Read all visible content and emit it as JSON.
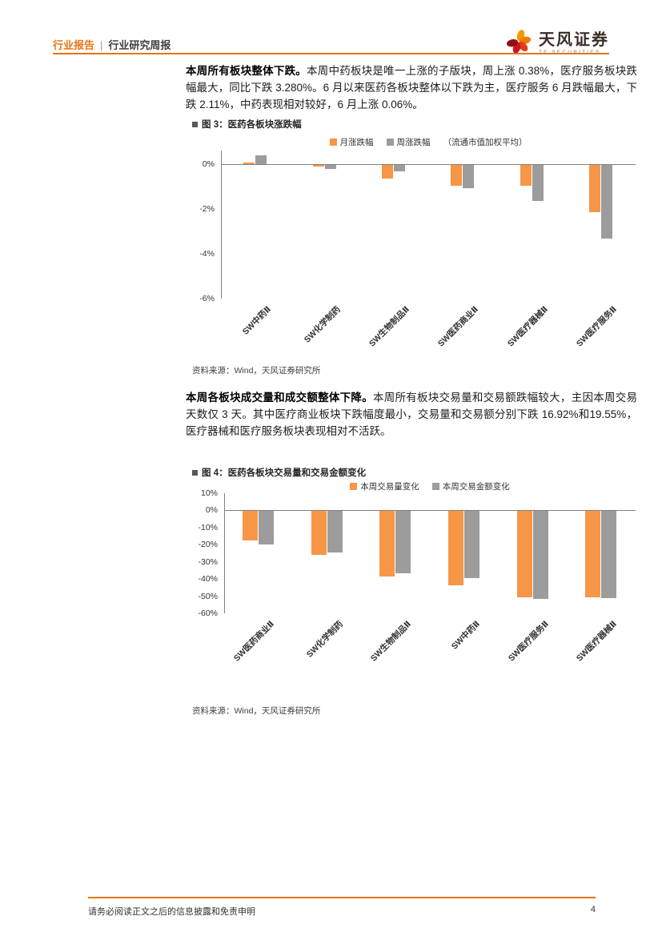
{
  "header": {
    "category": "行业报告",
    "separator": "|",
    "title": "行业研究周报",
    "brand": "天风证券",
    "brand_sub": "TF SECURITIES"
  },
  "paragraphs": {
    "p1_bold": "本周所有板块整体下跌。",
    "p1_text": "本周中药板块是唯一上涨的子版块，周上涨 0.38%，医疗服务板块跌幅最大，同比下跌 3.280%。6 月以来医药各板块整体以下跌为主，医疗服务 6 月跌幅最大，下跌 2.11%，中药表现相对较好，6 月上涨 0.06%。",
    "p2_bold": "本周各板块成交量和成交额整体下降。",
    "p2_text": "本周所有板块交易量和交易额跌幅较大，主因本周交易天数仅 3 天。其中医疗商业板块下跌幅度最小，交易量和交易额分别下跌 16.92%和19.55%，医疗器械和医疗服务板块表现相对不活跃。"
  },
  "figures": [
    {
      "caption": "图 3：医药各板块涨跌幅",
      "source": "资料来源：Wind，天风证券研究所"
    },
    {
      "caption": "图 4：医药各板块交易量和交易金额变化",
      "source": "资料来源：Wind，天风证券研究所"
    }
  ],
  "chart_data": [
    {
      "type": "bar",
      "title": "医药各板块涨跌幅",
      "categories": [
        "SW中药Ⅱ",
        "SW化学制药",
        "SW生物制品Ⅱ",
        "SW医药商业Ⅱ",
        "SW医疗器械Ⅱ",
        "SW医疗服务Ⅱ"
      ],
      "series": [
        {
          "name": "月涨跌幅",
          "color": "#F79646",
          "values": [
            0.06,
            -0.08,
            -0.6,
            -0.95,
            -0.95,
            -2.11
          ]
        },
        {
          "name": "周涨跌幅",
          "color": "#9C9C9C",
          "values": [
            0.38,
            -0.18,
            -0.3,
            -1.05,
            -1.6,
            -3.28
          ]
        }
      ],
      "legend_note": "（流通市值加权平均）",
      "ylim": [
        -6,
        0.6
      ],
      "yticks": [
        0,
        -2,
        -4,
        -6
      ],
      "ytick_labels": [
        "0%",
        "-2%",
        "-4%",
        "-6%"
      ],
      "legend_position": "top",
      "grid": false
    },
    {
      "type": "bar",
      "title": "医药各板块交易量和交易金额变化",
      "categories": [
        "SW医药商业Ⅱ",
        "SW化学制药",
        "SW生物制品Ⅱ",
        "SW中药Ⅱ",
        "SW医疗服务Ⅱ",
        "SW医疗器械Ⅱ"
      ],
      "series": [
        {
          "name": "本周交易量变化",
          "color": "#F79646",
          "values": [
            -16.92,
            -25.5,
            -38,
            -43,
            -50,
            -50
          ]
        },
        {
          "name": "本周交易金额变化",
          "color": "#9C9C9C",
          "values": [
            -19.55,
            -24,
            -36,
            -39,
            -51,
            -50.5
          ]
        }
      ],
      "legend_note": "",
      "ylim": [
        -60,
        10
      ],
      "yticks": [
        10,
        0,
        -10,
        -20,
        -30,
        -40,
        -50,
        -60
      ],
      "ytick_labels": [
        "10%",
        "0%",
        "-10%",
        "-20%",
        "-30%",
        "-40%",
        "-50%",
        "-60%"
      ],
      "legend_position": "top",
      "grid": false
    }
  ],
  "footer": {
    "disclaimer": "请务必阅读正文之后的信息披露和免责申明",
    "page_number": "4"
  },
  "colors": {
    "accent_orange": "#E87511",
    "bar_orange": "#F79646",
    "bar_gray": "#9C9C9C"
  }
}
